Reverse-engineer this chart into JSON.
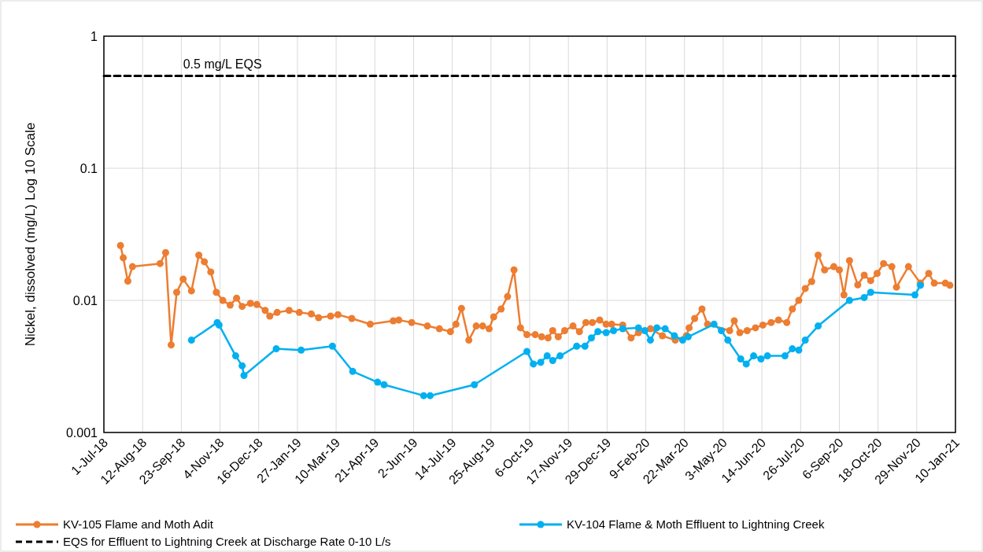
{
  "chart_data": {
    "type": "line",
    "ylabel": "Nickel, dissolved (mg/L) Log 10 Scale",
    "log": "y",
    "grid": true,
    "legend": "bottom",
    "marker": "circle",
    "xlim": [
      "2018-07-01",
      "2021-01-10"
    ],
    "xticks": [
      {
        "value": "2018-07-01",
        "label": "1-Jul-18"
      },
      {
        "value": "2018-08-12",
        "label": "12-Aug-18"
      },
      {
        "value": "2018-09-23",
        "label": "23-Sep-18"
      },
      {
        "value": "2018-11-04",
        "label": "4-Nov-18"
      },
      {
        "value": "2018-12-16",
        "label": "16-Dec-18"
      },
      {
        "value": "2019-01-27",
        "label": "27-Jan-19"
      },
      {
        "value": "2019-03-10",
        "label": "10-Mar-19"
      },
      {
        "value": "2019-04-21",
        "label": "21-Apr-19"
      },
      {
        "value": "2019-06-02",
        "label": "2-Jun-19"
      },
      {
        "value": "2019-07-14",
        "label": "14-Jul-19"
      },
      {
        "value": "2019-08-25",
        "label": "25-Aug-19"
      },
      {
        "value": "2019-10-06",
        "label": "6-Oct-19"
      },
      {
        "value": "2019-11-17",
        "label": "17-Nov-19"
      },
      {
        "value": "2019-12-29",
        "label": "29-Dec-19"
      },
      {
        "value": "2020-02-09",
        "label": "9-Feb-20"
      },
      {
        "value": "2020-03-22",
        "label": "22-Mar-20"
      },
      {
        "value": "2020-05-03",
        "label": "3-May-20"
      },
      {
        "value": "2020-06-14",
        "label": "14-Jun-20"
      },
      {
        "value": "2020-07-26",
        "label": "26-Jul-20"
      },
      {
        "value": "2020-09-06",
        "label": "6-Sep-20"
      },
      {
        "value": "2020-10-18",
        "label": "18-Oct-20"
      },
      {
        "value": "2020-11-29",
        "label": "29-Nov-20"
      },
      {
        "value": "2021-01-10",
        "label": "10-Jan-21"
      }
    ],
    "ylim": [
      0.001,
      1
    ],
    "yticks": [
      0.001,
      0.01,
      0.1,
      1
    ],
    "annotations": [
      {
        "text": "0.5 mg/L EQS",
        "x": "2018-09-25",
        "y": 0.5
      }
    ],
    "series": [
      {
        "name": "KV-105 Flame and Moth Adit",
        "color": "#ed7d31",
        "x": [
          "2018-07-19",
          "2018-07-22",
          "2018-07-27",
          "2018-08-01",
          "2018-08-31",
          "2018-09-06",
          "2018-09-12",
          "2018-09-18",
          "2018-09-25",
          "2018-10-04",
          "2018-10-12",
          "2018-10-18",
          "2018-10-25",
          "2018-10-31",
          "2018-11-07",
          "2018-11-15",
          "2018-11-22",
          "2018-11-28",
          "2018-12-07",
          "2018-12-14",
          "2018-12-23",
          "2018-12-28",
          "2019-01-05",
          "2019-01-18",
          "2019-01-29",
          "2019-02-11",
          "2019-02-19",
          "2019-03-04",
          "2019-03-12",
          "2019-03-27",
          "2019-04-16",
          "2019-05-11",
          "2019-05-17",
          "2019-05-31",
          "2019-06-17",
          "2019-06-30",
          "2019-07-12",
          "2019-07-18",
          "2019-07-24",
          "2019-08-01",
          "2019-08-09",
          "2019-08-16",
          "2019-08-23",
          "2019-08-28",
          "2019-09-05",
          "2019-09-12",
          "2019-09-19",
          "2019-09-26",
          "2019-10-03",
          "2019-10-12",
          "2019-10-19",
          "2019-10-26",
          "2019-10-31",
          "2019-11-06",
          "2019-11-13",
          "2019-11-22",
          "2019-11-29",
          "2019-12-06",
          "2019-12-13",
          "2019-12-21",
          "2019-12-28",
          "2020-01-03",
          "2020-01-15",
          "2020-01-24",
          "2020-02-01",
          "2020-02-14",
          "2020-02-27",
          "2020-03-12",
          "2020-03-24",
          "2020-03-27",
          "2020-04-02",
          "2020-04-10",
          "2020-04-16",
          "2020-05-10",
          "2020-05-15",
          "2020-05-21",
          "2020-05-29",
          "2020-06-07",
          "2020-06-15",
          "2020-06-24",
          "2020-07-02",
          "2020-07-11",
          "2020-07-17",
          "2020-07-24",
          "2020-07-31",
          "2020-08-07",
          "2020-08-14",
          "2020-08-21",
          "2020-08-31",
          "2020-09-06",
          "2020-09-11",
          "2020-09-17",
          "2020-09-26",
          "2020-10-03",
          "2020-10-10",
          "2020-10-17",
          "2020-10-24",
          "2020-11-02",
          "2020-11-07",
          "2020-11-20",
          "2020-12-03",
          "2020-12-12",
          "2020-12-18",
          "2020-12-30",
          "2021-01-04"
        ],
        "values": [
          0.026,
          0.021,
          0.014,
          0.018,
          0.019,
          0.023,
          0.0046,
          0.0115,
          0.0145,
          0.0118,
          0.022,
          0.0196,
          0.0164,
          0.0115,
          0.01,
          0.0092,
          0.0104,
          0.009,
          0.0095,
          0.0093,
          0.0084,
          0.0076,
          0.0081,
          0.0084,
          0.0081,
          0.0079,
          0.0074,
          0.0076,
          0.0078,
          0.0073,
          0.0066,
          0.007,
          0.0071,
          0.0068,
          0.0064,
          0.0061,
          0.0058,
          0.0066,
          0.0087,
          0.005,
          0.0064,
          0.0064,
          0.0061,
          0.0075,
          0.0086,
          0.0107,
          0.017,
          0.0062,
          0.0055,
          0.0055,
          0.0053,
          0.0052,
          0.0059,
          0.0053,
          0.0059,
          0.0064,
          0.0058,
          0.0068,
          0.0068,
          0.0071,
          0.0066,
          0.0066,
          0.0065,
          0.0052,
          0.0057,
          0.0061,
          0.0054,
          0.005,
          0.0054,
          0.0062,
          0.0073,
          0.0086,
          0.0066,
          0.0059,
          0.007,
          0.0057,
          0.0059,
          0.0062,
          0.0065,
          0.0068,
          0.0071,
          0.0068,
          0.0086,
          0.01,
          0.0123,
          0.0139,
          0.022,
          0.017,
          0.018,
          0.017,
          0.011,
          0.02,
          0.0131,
          0.0155,
          0.0141,
          0.016,
          0.019,
          0.018,
          0.0126,
          0.018,
          0.0135,
          0.016,
          0.0135,
          0.0135,
          0.013
        ]
      },
      {
        "name": "KV-104 Flame & Moth Effluent to Lightning Creek",
        "color": "#00b0f0",
        "x": [
          "2018-10-04",
          "2018-11-01",
          "2018-11-03",
          "2018-11-21",
          "2018-11-28",
          "2018-11-30",
          "2019-01-04",
          "2019-01-31",
          "2019-03-06",
          "2019-03-28",
          "2019-04-24",
          "2019-05-01",
          "2019-06-13",
          "2019-06-20",
          "2019-08-07",
          "2019-10-03",
          "2019-10-10",
          "2019-10-18",
          "2019-10-25",
          "2019-10-31",
          "2019-11-08",
          "2019-11-26",
          "2019-12-05",
          "2019-12-12",
          "2019-12-19",
          "2019-12-28",
          "2020-01-05",
          "2020-01-15",
          "2020-02-01",
          "2020-02-08",
          "2020-02-14",
          "2020-02-21",
          "2020-03-01",
          "2020-03-11",
          "2020-03-20",
          "2020-03-26",
          "2020-04-23",
          "2020-05-01",
          "2020-05-08",
          "2020-05-22",
          "2020-05-28",
          "2020-06-05",
          "2020-06-13",
          "2020-06-20",
          "2020-07-09",
          "2020-07-17",
          "2020-07-24",
          "2020-07-31",
          "2020-08-14",
          "2020-09-17",
          "2020-10-03",
          "2020-10-10",
          "2020-11-27",
          "2020-12-03"
        ],
        "values": [
          0.005,
          0.0068,
          0.0065,
          0.0038,
          0.0032,
          0.0027,
          0.0043,
          0.0042,
          0.0045,
          0.0029,
          0.0024,
          0.0023,
          0.0019,
          0.0019,
          0.0023,
          0.0041,
          0.0033,
          0.0034,
          0.0038,
          0.0035,
          0.0038,
          0.0045,
          0.0045,
          0.0052,
          0.0058,
          0.0057,
          0.0059,
          0.0061,
          0.0062,
          0.0059,
          0.005,
          0.0062,
          0.0061,
          0.0054,
          0.005,
          0.0053,
          0.0066,
          0.0059,
          0.005,
          0.0036,
          0.0033,
          0.0038,
          0.0036,
          0.0038,
          0.0038,
          0.0043,
          0.0042,
          0.005,
          0.0064,
          0.01,
          0.0105,
          0.0115,
          0.011,
          0.013
        ]
      },
      {
        "name": "EQS for Effluent to Lightning Creek at Discharge Rate 0-10 L/s",
        "color": "#000000",
        "line_style": "dashed",
        "marker": "none",
        "x": [
          "2018-07-01",
          "2021-01-10"
        ],
        "values": [
          0.5,
          0.5
        ]
      }
    ]
  }
}
